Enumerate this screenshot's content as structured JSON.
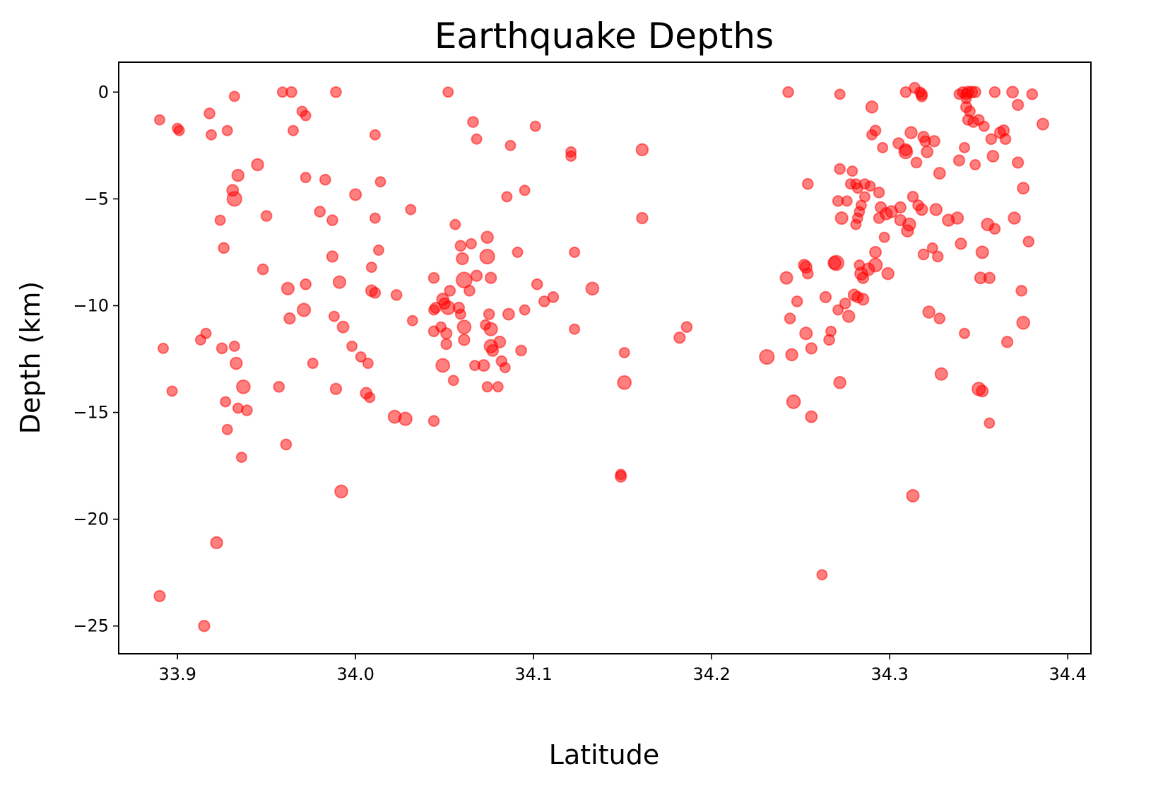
{
  "chart_data": {
    "type": "scatter",
    "title": "Earthquake Depths",
    "xlabel": "Latitude",
    "ylabel": "Depth (km)",
    "xlim": [
      33.867,
      34.413
    ],
    "ylim": [
      -26.3,
      1.4
    ],
    "xticks": [
      33.9,
      34.0,
      34.1,
      34.2,
      34.3,
      34.4
    ],
    "xtick_labels": [
      "33.9",
      "34.0",
      "34.1",
      "34.2",
      "34.3",
      "34.4"
    ],
    "yticks": [
      0,
      -5,
      -10,
      -15,
      -20,
      -25
    ],
    "ytick_labels": [
      "0",
      "−5",
      "−10",
      "−15",
      "−20",
      "−25"
    ],
    "grid": false,
    "legend": "none",
    "marker_color": "#ff0000",
    "marker_alpha": 0.5,
    "marker_size_note": "marker size scales with magnitude",
    "points": [
      [
        33.89,
        -1.3,
        1
      ],
      [
        33.892,
        -12.0,
        1
      ],
      [
        33.897,
        -14.0,
        1
      ],
      [
        33.9,
        -1.7,
        1
      ],
      [
        33.901,
        -1.8,
        1
      ],
      [
        33.89,
        -23.6,
        1.2
      ],
      [
        33.915,
        -25.0,
        1.2
      ],
      [
        33.913,
        -11.6,
        1
      ],
      [
        33.916,
        -11.3,
        1
      ],
      [
        33.918,
        -1.0,
        1.1
      ],
      [
        33.919,
        -2.0,
        1
      ],
      [
        33.922,
        -21.1,
        1.4
      ],
      [
        33.924,
        -6.0,
        1
      ],
      [
        33.925,
        -12.0,
        1.1
      ],
      [
        33.926,
        -7.3,
        1.1
      ],
      [
        33.927,
        -14.5,
        1
      ],
      [
        33.928,
        -15.8,
        1
      ],
      [
        33.928,
        -1.8,
        1
      ],
      [
        33.931,
        -4.6,
        1.3
      ],
      [
        33.932,
        -5.0,
        2.1
      ],
      [
        33.932,
        -0.2,
        1
      ],
      [
        33.932,
        -11.9,
        1
      ],
      [
        33.933,
        -12.7,
        1.4
      ],
      [
        33.934,
        -14.8,
        1
      ],
      [
        33.934,
        -3.9,
        1.4
      ],
      [
        33.936,
        -17.1,
        1
      ],
      [
        33.937,
        -13.8,
        1.8
      ],
      [
        33.939,
        -14.9,
        1.1
      ],
      [
        33.945,
        -3.4,
        1.4
      ],
      [
        33.948,
        -8.3,
        1.1
      ],
      [
        33.95,
        -5.8,
        1.1
      ],
      [
        33.957,
        -13.8,
        1.1
      ],
      [
        33.959,
        0.0,
        1
      ],
      [
        33.961,
        -16.5,
        1.1
      ],
      [
        33.962,
        -9.2,
        1.5
      ],
      [
        33.963,
        -10.6,
        1.2
      ],
      [
        33.964,
        0.0,
        1.1
      ],
      [
        33.965,
        -1.8,
        1
      ],
      [
        33.97,
        -0.9,
        1
      ],
      [
        33.971,
        -10.2,
        1.7
      ],
      [
        33.972,
        -1.1,
        1
      ],
      [
        33.972,
        -4.0,
        1
      ],
      [
        33.972,
        -9.0,
        1.1
      ],
      [
        33.976,
        -12.7,
        1
      ],
      [
        33.98,
        -5.6,
        1.1
      ],
      [
        33.983,
        -4.1,
        1.1
      ],
      [
        33.987,
        -6.0,
        1.1
      ],
      [
        33.987,
        -7.7,
        1.2
      ],
      [
        33.988,
        -10.5,
        1
      ],
      [
        33.989,
        -13.9,
        1.2
      ],
      [
        33.989,
        0.0,
        1.1
      ],
      [
        33.991,
        -8.9,
        1.5
      ],
      [
        33.992,
        -18.7,
        1.6
      ],
      [
        33.993,
        -11.0,
        1.3
      ],
      [
        33.998,
        -11.9,
        1
      ],
      [
        34.0,
        -4.8,
        1.3
      ],
      [
        34.003,
        -12.4,
        1
      ],
      [
        34.006,
        -14.1,
        1.3
      ],
      [
        34.007,
        -12.7,
        1
      ],
      [
        34.008,
        -14.3,
        1
      ],
      [
        34.009,
        -8.2,
        1
      ],
      [
        34.009,
        -9.3,
        1.3
      ],
      [
        34.011,
        -9.4,
        1.1
      ],
      [
        34.011,
        -5.9,
        1
      ],
      [
        34.011,
        -2.0,
        1
      ],
      [
        34.013,
        -7.4,
        1
      ],
      [
        34.014,
        -4.2,
        1
      ],
      [
        34.022,
        -15.2,
        1.6
      ],
      [
        34.023,
        -9.5,
        1.1
      ],
      [
        34.028,
        -15.3,
        1.7
      ],
      [
        34.031,
        -5.5,
        1
      ],
      [
        34.032,
        -10.7,
        1
      ],
      [
        34.044,
        -8.7,
        1.1
      ],
      [
        34.044,
        -10.2,
        1
      ],
      [
        34.044,
        -11.2,
        1.1
      ],
      [
        34.044,
        -15.4,
        1.1
      ],
      [
        34.045,
        -10.1,
        1.1
      ],
      [
        34.048,
        -11.0,
        1
      ],
      [
        34.049,
        -9.7,
        1.4
      ],
      [
        34.049,
        -12.8,
        1.8
      ],
      [
        34.05,
        -9.9,
        1.2
      ],
      [
        34.051,
        -11.3,
        1.2
      ],
      [
        34.051,
        -11.8,
        1.1
      ],
      [
        34.052,
        0.0,
        1
      ],
      [
        34.052,
        -10.1,
        1.8
      ],
      [
        34.053,
        -9.3,
        1.1
      ],
      [
        34.055,
        -13.5,
        1
      ],
      [
        34.056,
        -6.2,
        1
      ],
      [
        34.058,
        -10.1,
        1.2
      ],
      [
        34.059,
        -10.4,
        1
      ],
      [
        34.059,
        -7.2,
        1.1
      ],
      [
        34.06,
        -7.8,
        1.4
      ],
      [
        34.061,
        -8.8,
        2.4
      ],
      [
        34.061,
        -11.0,
        1.8
      ],
      [
        34.061,
        -11.6,
        1.2
      ],
      [
        34.064,
        -9.3,
        1.1
      ],
      [
        34.065,
        -7.1,
        1
      ],
      [
        34.066,
        -1.4,
        1.1
      ],
      [
        34.067,
        -12.8,
        1
      ],
      [
        34.068,
        -8.6,
        1.2
      ],
      [
        34.068,
        -2.2,
        1
      ],
      [
        34.072,
        -12.8,
        1.3
      ],
      [
        34.073,
        -10.9,
        1
      ],
      [
        34.074,
        -7.7,
        2.1
      ],
      [
        34.074,
        -6.8,
        1.4
      ],
      [
        34.074,
        -13.8,
        1
      ],
      [
        34.075,
        -10.4,
        1.1
      ],
      [
        34.076,
        -8.7,
        1.2
      ],
      [
        34.076,
        -11.1,
        1.7
      ],
      [
        34.076,
        -11.9,
        1.7
      ],
      [
        34.077,
        -12.1,
        1.3
      ],
      [
        34.08,
        -13.8,
        1
      ],
      [
        34.081,
        -11.7,
        1.3
      ],
      [
        34.082,
        -12.6,
        1.1
      ],
      [
        34.084,
        -12.9,
        1
      ],
      [
        34.085,
        -4.9,
        1
      ],
      [
        34.086,
        -10.4,
        1.3
      ],
      [
        34.087,
        -2.5,
        1
      ],
      [
        34.091,
        -7.5,
        1
      ],
      [
        34.093,
        -12.1,
        1.1
      ],
      [
        34.095,
        -10.2,
        1
      ],
      [
        34.095,
        -4.6,
        1
      ],
      [
        34.101,
        -1.6,
        1
      ],
      [
        34.102,
        -9.0,
        1.1
      ],
      [
        34.106,
        -9.8,
        1.1
      ],
      [
        34.111,
        -9.6,
        1.1
      ],
      [
        34.121,
        -2.8,
        1
      ],
      [
        34.121,
        -3.0,
        1
      ],
      [
        34.123,
        -7.5,
        1
      ],
      [
        34.123,
        -11.1,
        1
      ],
      [
        34.133,
        -9.2,
        1.6
      ],
      [
        34.149,
        -17.9,
        1
      ],
      [
        34.149,
        -18.0,
        1.2
      ],
      [
        34.151,
        -12.2,
        1
      ],
      [
        34.151,
        -13.6,
        1.8
      ],
      [
        34.161,
        -2.7,
        1.4
      ],
      [
        34.161,
        -5.9,
        1.2
      ],
      [
        34.182,
        -11.5,
        1.2
      ],
      [
        34.186,
        -11.0,
        1.1
      ],
      [
        34.231,
        -12.4,
        2.1
      ],
      [
        34.242,
        -8.7,
        1.5
      ],
      [
        34.243,
        0.0,
        1.1
      ],
      [
        34.244,
        -10.6,
        1.1
      ],
      [
        34.245,
        -12.3,
        1.4
      ],
      [
        34.246,
        -14.5,
        1.8
      ],
      [
        34.248,
        -9.8,
        1.1
      ],
      [
        34.252,
        -8.1,
        1.3
      ],
      [
        34.253,
        -8.2,
        1.4
      ],
      [
        34.253,
        -11.3,
        1.5
      ],
      [
        34.254,
        -4.3,
        1.1
      ],
      [
        34.254,
        -8.5,
        1.1
      ],
      [
        34.256,
        -12.0,
        1.2
      ],
      [
        34.256,
        -15.2,
        1.3
      ],
      [
        34.262,
        -22.6,
        1
      ],
      [
        34.264,
        -9.6,
        1.2
      ],
      [
        34.266,
        -11.6,
        1.1
      ],
      [
        34.267,
        -11.2,
        1
      ],
      [
        34.269,
        -8.0,
        1.6
      ],
      [
        34.27,
        -8.0,
        2.2
      ],
      [
        34.271,
        -10.2,
        1
      ],
      [
        34.271,
        -5.1,
        1.1
      ],
      [
        34.272,
        -13.6,
        1.4
      ],
      [
        34.272,
        -3.6,
        1.1
      ],
      [
        34.272,
        -0.1,
        1
      ],
      [
        34.273,
        -5.9,
        1.5
      ],
      [
        34.275,
        -9.9,
        1.1
      ],
      [
        34.276,
        -5.1,
        1
      ],
      [
        34.277,
        -10.5,
        1.4
      ],
      [
        34.278,
        -4.3,
        1
      ],
      [
        34.279,
        -3.7,
        1
      ],
      [
        34.28,
        -9.5,
        1.3
      ],
      [
        34.281,
        -4.3,
        1
      ],
      [
        34.281,
        -6.2,
        1
      ],
      [
        34.282,
        -5.9,
        1
      ],
      [
        34.282,
        -4.5,
        1
      ],
      [
        34.282,
        -9.6,
        1.2
      ],
      [
        34.283,
        -8.1,
        1
      ],
      [
        34.283,
        -5.6,
        1
      ],
      [
        34.284,
        -8.5,
        1.6
      ],
      [
        34.284,
        -5.3,
        1
      ],
      [
        34.285,
        -8.7,
        1.2
      ],
      [
        34.285,
        -9.7,
        1.3
      ],
      [
        34.286,
        -4.9,
        1
      ],
      [
        34.286,
        -4.3,
        1
      ],
      [
        34.288,
        -8.3,
        1.5
      ],
      [
        34.289,
        -4.4,
        1
      ],
      [
        34.29,
        -0.7,
        1.4
      ],
      [
        34.29,
        -2.0,
        1
      ],
      [
        34.292,
        -8.1,
        1.8
      ],
      [
        34.292,
        -1.8,
        1.1
      ],
      [
        34.292,
        -7.5,
        1.3
      ],
      [
        34.294,
        -4.7,
        1.1
      ],
      [
        34.294,
        -5.9,
        1.1
      ],
      [
        34.295,
        -5.4,
        1.2
      ],
      [
        34.296,
        -2.6,
        1
      ],
      [
        34.297,
        -6.8,
        1
      ],
      [
        34.298,
        -5.7,
        1.4
      ],
      [
        34.299,
        -8.5,
        1.4
      ],
      [
        34.301,
        -5.6,
        1.4
      ],
      [
        34.305,
        -2.4,
        1.2
      ],
      [
        34.306,
        -5.4,
        1.2
      ],
      [
        34.306,
        -6.0,
        1.2
      ],
      [
        34.309,
        -2.7,
        1.4
      ],
      [
        34.309,
        -2.8,
        1.8
      ],
      [
        34.309,
        0.0,
        1.1
      ],
      [
        34.31,
        -6.5,
        1.4
      ],
      [
        34.311,
        -6.2,
        1.6
      ],
      [
        34.312,
        -1.9,
        1.4
      ],
      [
        34.313,
        -18.9,
        1.5
      ],
      [
        34.313,
        -4.9,
        1.1
      ],
      [
        34.314,
        0.2,
        1.1
      ],
      [
        34.315,
        -3.3,
        1.1
      ],
      [
        34.316,
        -5.3,
        1.1
      ],
      [
        34.317,
        0.0,
        1
      ],
      [
        34.318,
        -0.1,
        1.2
      ],
      [
        34.318,
        -0.2,
        1.1
      ],
      [
        34.318,
        -5.5,
        1.3
      ],
      [
        34.319,
        -2.1,
        1.2
      ],
      [
        34.319,
        -7.6,
        1.1
      ],
      [
        34.32,
        -2.3,
        1.1
      ],
      [
        34.321,
        -2.8,
        1.3
      ],
      [
        34.322,
        -10.3,
        1.4
      ],
      [
        34.324,
        -7.3,
        1
      ],
      [
        34.325,
        -2.3,
        1.2
      ],
      [
        34.326,
        -5.5,
        1.4
      ],
      [
        34.327,
        -7.7,
        1.1
      ],
      [
        34.328,
        -10.6,
        1.1
      ],
      [
        34.328,
        -3.8,
        1.3
      ],
      [
        34.329,
        -13.2,
        1.5
      ],
      [
        34.333,
        -6.0,
        1.4
      ],
      [
        34.338,
        -5.9,
        1.4
      ],
      [
        34.339,
        -3.2,
        1.2
      ],
      [
        34.339,
        -0.1,
        1
      ],
      [
        34.34,
        -7.1,
        1.2
      ],
      [
        34.341,
        0.0,
        1.1
      ],
      [
        34.342,
        -2.6,
        1
      ],
      [
        34.342,
        -11.3,
        1
      ],
      [
        34.343,
        -0.3,
        1
      ],
      [
        34.343,
        -0.7,
        1.2
      ],
      [
        34.343,
        -0.1,
        1.2
      ],
      [
        34.344,
        0.0,
        1.3
      ],
      [
        34.344,
        -1.3,
        1.1
      ],
      [
        34.345,
        -0.9,
        1.1
      ],
      [
        34.346,
        0.0,
        1.3
      ],
      [
        34.347,
        -1.4,
        1.1
      ],
      [
        34.348,
        0.0,
        1.2
      ],
      [
        34.348,
        -3.4,
        1
      ],
      [
        34.35,
        -13.9,
        1.7
      ],
      [
        34.35,
        -1.3,
        1.1
      ],
      [
        34.351,
        -8.7,
        1.3
      ],
      [
        34.352,
        -14.0,
        1.3
      ],
      [
        34.352,
        -7.5,
        1.5
      ],
      [
        34.353,
        -1.6,
        1
      ],
      [
        34.355,
        -6.2,
        1.5
      ],
      [
        34.356,
        -15.5,
        1
      ],
      [
        34.356,
        -8.7,
        1.2
      ],
      [
        34.357,
        -2.2,
        1.1
      ],
      [
        34.358,
        -3.0,
        1.3
      ],
      [
        34.359,
        0.0,
        1.1
      ],
      [
        34.359,
        -6.4,
        1.1
      ],
      [
        34.362,
        -1.9,
        1.2
      ],
      [
        34.364,
        -1.8,
        1.2
      ],
      [
        34.365,
        -2.2,
        1.1
      ],
      [
        34.366,
        -11.7,
        1.2
      ],
      [
        34.369,
        0.0,
        1.3
      ],
      [
        34.37,
        -5.9,
        1.4
      ],
      [
        34.372,
        -3.3,
        1.2
      ],
      [
        34.372,
        -0.6,
        1.2
      ],
      [
        34.374,
        -9.3,
        1.1
      ],
      [
        34.375,
        -10.8,
        1.6
      ],
      [
        34.375,
        -4.5,
        1.3
      ],
      [
        34.378,
        -7.0,
        1.1
      ],
      [
        34.38,
        -0.1,
        1.1
      ],
      [
        34.386,
        -1.5,
        1.3
      ]
    ]
  }
}
